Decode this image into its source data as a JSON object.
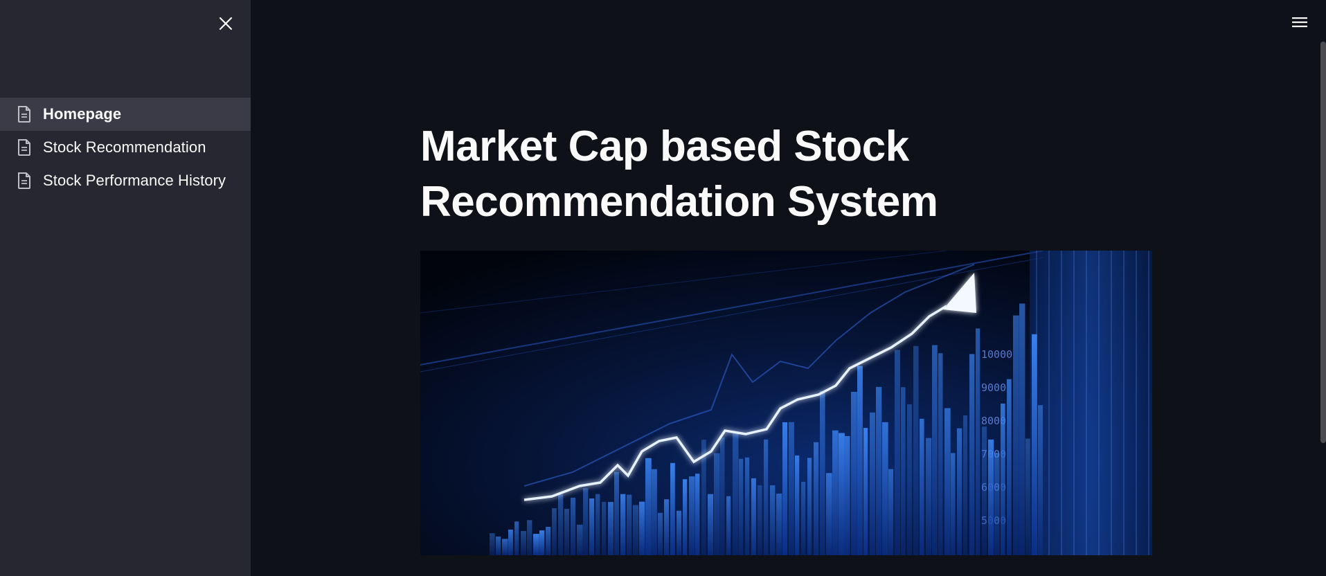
{
  "sidebar": {
    "items": [
      {
        "label": "Homepage",
        "icon": "document-icon",
        "active": true
      },
      {
        "label": "Stock Recommendation",
        "icon": "document-icon",
        "active": false
      },
      {
        "label": "Stock Performance History",
        "icon": "document-icon",
        "active": false
      }
    ]
  },
  "main": {
    "title": "Market Cap based Stock Recommendation System",
    "hero_image": {
      "description": "stock-market-growth-image",
      "tick_labels": [
        "10000",
        "9000",
        "8000",
        "7000",
        "6000",
        "5000"
      ]
    }
  },
  "colors": {
    "sidebar_bg": "#262730",
    "main_bg": "#0e1117",
    "active_item_bg": "#3a3b46",
    "text": "#fafafa",
    "accent_blue": "#1e6bff"
  }
}
